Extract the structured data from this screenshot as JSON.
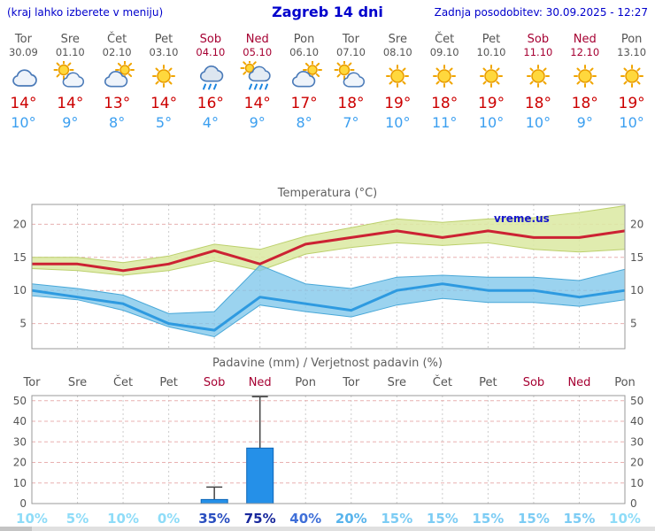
{
  "header": {
    "left_note": "(kraj lahko izberete v meniju)",
    "title": "Zagreb 14 dni",
    "updated": "Zadnja posodobitev: 30.09.2025 - 12:27"
  },
  "colors": {
    "accent_blue": "#0000cc",
    "weekday_gray": "#555555",
    "weekend_red": "#a60032",
    "tmax_red": "#cc0000",
    "tmin_blue": "#3b9ff0",
    "bar_blue": "#2590e8"
  },
  "days": [
    {
      "name": "Tor",
      "date": "30.09",
      "weekend": false,
      "icon": "cloud",
      "tmax": 14,
      "tmin": 10
    },
    {
      "name": "Sre",
      "date": "01.10",
      "weekend": false,
      "icon": "sun-cloud",
      "tmax": 14,
      "tmin": 9
    },
    {
      "name": "Čet",
      "date": "02.10",
      "weekend": false,
      "icon": "cloud-sun",
      "tmax": 13,
      "tmin": 8
    },
    {
      "name": "Pet",
      "date": "03.10",
      "weekend": false,
      "icon": "sun",
      "tmax": 14,
      "tmin": 5
    },
    {
      "name": "Sob",
      "date": "04.10",
      "weekend": true,
      "icon": "rain",
      "tmax": 16,
      "tmin": 4
    },
    {
      "name": "Ned",
      "date": "05.10",
      "weekend": true,
      "icon": "rain-sun",
      "tmax": 14,
      "tmin": 9
    },
    {
      "name": "Pon",
      "date": "06.10",
      "weekend": false,
      "icon": "cloud-sun",
      "tmax": 17,
      "tmin": 8
    },
    {
      "name": "Tor",
      "date": "07.10",
      "weekend": false,
      "icon": "sun-cloud",
      "tmax": 18,
      "tmin": 7
    },
    {
      "name": "Sre",
      "date": "08.10",
      "weekend": false,
      "icon": "sun",
      "tmax": 19,
      "tmin": 10
    },
    {
      "name": "Čet",
      "date": "09.10",
      "weekend": false,
      "icon": "sun",
      "tmax": 18,
      "tmin": 11
    },
    {
      "name": "Pet",
      "date": "10.10",
      "weekend": false,
      "icon": "sun",
      "tmax": 19,
      "tmin": 10
    },
    {
      "name": "Sob",
      "date": "11.10",
      "weekend": true,
      "icon": "sun",
      "tmax": 18,
      "tmin": 10
    },
    {
      "name": "Ned",
      "date": "12.10",
      "weekend": true,
      "icon": "sun",
      "tmax": 18,
      "tmin": 9
    },
    {
      "name": "Pon",
      "date": "13.10",
      "weekend": false,
      "icon": "sun",
      "tmax": 19,
      "tmin": 10
    }
  ],
  "chart_data": [
    {
      "type": "line",
      "title": "Temperatura (°C)",
      "watermark": "vreme.us",
      "categories": [
        "Tor",
        "Sre",
        "Čet",
        "Pet",
        "Sob",
        "Ned",
        "Pon",
        "Tor",
        "Sre",
        "Čet",
        "Pet",
        "Sob",
        "Ned",
        "Pon"
      ],
      "ylim": [
        1.2,
        23
      ],
      "yticks": [
        5,
        10,
        15,
        20
      ],
      "grid": true,
      "band_colors": {
        "tmax": "#dce9a4",
        "tmin": "#7fc6ea"
      },
      "line_colors": {
        "tmax": "#cc2233",
        "tmin": "#2e9ae0"
      },
      "series": [
        {
          "name": "tmax",
          "values": [
            14,
            14,
            13,
            14,
            16,
            14,
            17,
            18,
            19,
            18,
            19,
            18,
            18,
            19
          ]
        },
        {
          "name": "tmax_upper",
          "values": [
            15,
            15,
            14.2,
            15.2,
            17,
            16.2,
            18.2,
            19.5,
            20.8,
            20.3,
            20.8,
            21,
            21.8,
            22.8
          ]
        },
        {
          "name": "tmax_lower",
          "values": [
            13.3,
            13,
            12.3,
            13,
            14.5,
            13,
            15.5,
            16.5,
            17.2,
            16.8,
            17.2,
            16.2,
            15.8,
            16.2
          ]
        },
        {
          "name": "tmin",
          "values": [
            10,
            9,
            8,
            5,
            4,
            9,
            8,
            7,
            10,
            11,
            10,
            10,
            9,
            10
          ]
        },
        {
          "name": "tmin_upper",
          "values": [
            11,
            10.3,
            9.3,
            6.5,
            6.8,
            13.8,
            11,
            10.3,
            12,
            12.3,
            12,
            12,
            11.5,
            13.2
          ]
        },
        {
          "name": "tmin_lower",
          "values": [
            9.2,
            8.6,
            7,
            4.5,
            3,
            7.8,
            6.8,
            6,
            7.8,
            8.8,
            8.2,
            8.2,
            7.6,
            8.6
          ]
        }
      ]
    },
    {
      "type": "bar",
      "title": "Padavine (mm) / Verjetnost padavin (%)",
      "categories": [
        "Tor",
        "Sre",
        "Čet",
        "Pet",
        "Sob",
        "Ned",
        "Pon",
        "Tor",
        "Sre",
        "Čet",
        "Pet",
        "Sob",
        "Ned",
        "Pon"
      ],
      "weekend_indices": [
        4,
        5,
        11,
        12
      ],
      "ylim": [
        0,
        52.5
      ],
      "yticks": [
        0,
        10,
        20,
        30,
        40,
        50
      ],
      "precip_mm": [
        0,
        0,
        0,
        0,
        2,
        27,
        0,
        0,
        0,
        0,
        0,
        0,
        0,
        0
      ],
      "whisker_max_mm": [
        0,
        0,
        0,
        0,
        8,
        52,
        0,
        0,
        0,
        0,
        0,
        0,
        0,
        0
      ],
      "probability_pct": [
        10,
        5,
        10,
        0,
        35,
        75,
        40,
        20,
        15,
        15,
        15,
        15,
        15,
        10
      ],
      "probability_colors": [
        "#8edcf8",
        "#8edcf8",
        "#8edcf8",
        "#8edcf8",
        "#2a4fc0",
        "#18289c",
        "#3f6fd8",
        "#58b4ec",
        "#7cccf4",
        "#7cccf4",
        "#7cccf4",
        "#7cccf4",
        "#7cccf4",
        "#8edcf8"
      ],
      "bar_color": "#2590e8"
    }
  ]
}
